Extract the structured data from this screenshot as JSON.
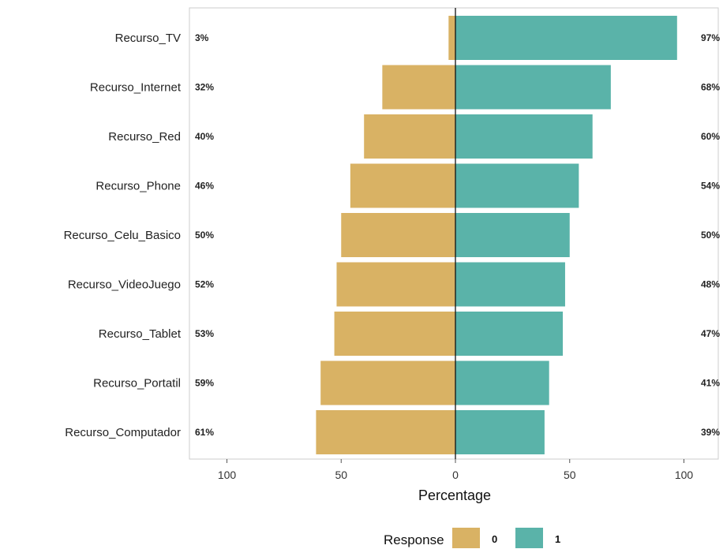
{
  "chart_data": {
    "type": "bar",
    "orientation": "horizontal-diverging",
    "categories": [
      "Recurso_TV",
      "Recurso_Internet",
      "Recurso_Red",
      "Recurso_Phone",
      "Recurso_Celu_Basico",
      "Recurso_VideoJuego",
      "Recurso_Tablet",
      "Recurso_Portatil",
      "Recurso_Computador"
    ],
    "series": [
      {
        "name": "0",
        "values": [
          3,
          32,
          40,
          46,
          50,
          52,
          53,
          59,
          61
        ],
        "labels": [
          "3%",
          "32%",
          "40%",
          "46%",
          "50%",
          "52%",
          "53%",
          "59%",
          "61%"
        ],
        "color": "#D9B264",
        "direction": "negative"
      },
      {
        "name": "1",
        "values": [
          97,
          68,
          60,
          54,
          50,
          48,
          47,
          41,
          39
        ],
        "labels": [
          "97%",
          "68%",
          "60%",
          "54%",
          "50%",
          "48%",
          "47%",
          "41%",
          "39%"
        ],
        "color": "#5AB3A9",
        "direction": "positive"
      }
    ],
    "xlabel": "Percentage",
    "xticks": [
      -100,
      -50,
      0,
      50,
      100
    ],
    "xtick_labels": [
      "100",
      "50",
      "0",
      "50",
      "100"
    ],
    "xlim": [
      -100,
      100
    ],
    "legend": {
      "title": "Response",
      "position": "bottom"
    },
    "grid": false
  }
}
